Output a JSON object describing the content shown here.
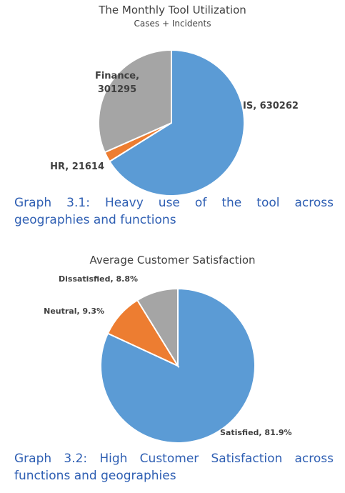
{
  "chart_data": [
    {
      "type": "pie",
      "title": "The Monthly Tool Utilization",
      "subtitle": "Cases + Incidents",
      "slices": [
        {
          "name": "IS",
          "value": 630262,
          "label": "IS, 630262",
          "color": "#5b9bd5"
        },
        {
          "name": "HR",
          "value": 21614,
          "label": "HR, 21614",
          "color": "#ed7d31"
        },
        {
          "name": "Finance",
          "value": 301295,
          "label_lines": [
            "Finance,",
            "301295"
          ],
          "color": "#a5a5a5"
        }
      ]
    },
    {
      "type": "pie",
      "title": "Average Customer Satisfaction",
      "slices": [
        {
          "name": "Satisfied",
          "value": 81.9,
          "label": "Satisfied, 81.9%",
          "color": "#5b9bd5"
        },
        {
          "name": "Neutral",
          "value": 9.3,
          "label": "Neutral, 9.3%",
          "color": "#ed7d31"
        },
        {
          "name": "Dissatisfied",
          "value": 8.8,
          "label": "Dissatisfied, 8.8%",
          "color": "#a5a5a5"
        }
      ]
    }
  ],
  "captions": {
    "graph1": "Graph 3.1: Heavy use of the tool across geographies and functions",
    "graph2": "Graph 3.2: High Customer Satisfaction across functions and geographies"
  }
}
